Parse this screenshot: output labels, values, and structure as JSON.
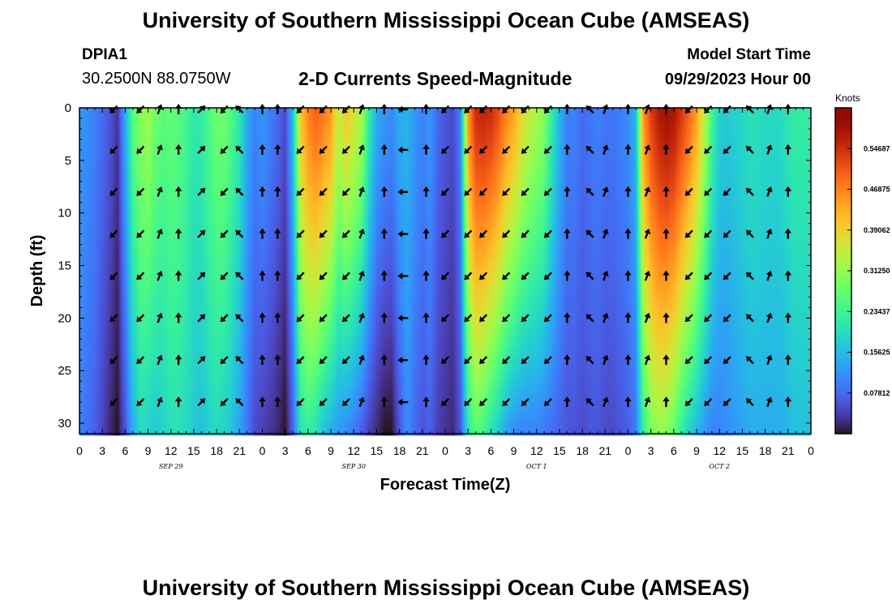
{
  "header": {
    "title": "University of Southern Mississippi Ocean Cube (AMSEAS)",
    "station_id": "DPIA1",
    "coordinates": "30.2500N  88.0750W",
    "chart_title": "2-D Currents Speed-Magnitude",
    "model_start_label": "Model Start Time",
    "model_start_value": "09/29/2023 Hour 00"
  },
  "footer": {
    "title": "University of Southern Mississippi Ocean Cube (AMSEAS)"
  },
  "colors": {
    "low": "#30123b",
    "mid": "#a4fc3c",
    "high": "#7a0403"
  },
  "chart_data": {
    "type": "heatmap",
    "title": "2-D Currents Speed-Magnitude",
    "xlabel": "Forecast Time(Z)",
    "ylabel": "Depth (ft)",
    "xlim": [
      0,
      96
    ],
    "ylim": [
      0,
      31
    ],
    "x_ticks": [
      0,
      3,
      6,
      9,
      12,
      15,
      18,
      21,
      24,
      27,
      30,
      33,
      36,
      39,
      42,
      45,
      48,
      51,
      54,
      57,
      60,
      63,
      66,
      69,
      72,
      75,
      78,
      81,
      84,
      87,
      90,
      93,
      96
    ],
    "x_tick_labels": [
      "0",
      "3",
      "6",
      "9",
      "12",
      "15",
      "18",
      "21",
      "0",
      "3",
      "6",
      "9",
      "12",
      "15",
      "18",
      "21",
      "0",
      "3",
      "6",
      "9",
      "12",
      "15",
      "18",
      "21",
      "0",
      "3",
      "6",
      "9",
      "12",
      "15",
      "18",
      "21",
      "0"
    ],
    "day_labels": [
      {
        "label": "SEP 29",
        "hour": 12
      },
      {
        "label": "SEP 30",
        "hour": 36
      },
      {
        "label": "OCT 1",
        "hour": 60
      },
      {
        "label": "OCT 2",
        "hour": 84
      }
    ],
    "y_ticks": [
      0,
      5,
      10,
      15,
      20,
      25,
      30
    ],
    "colorbar": {
      "label": "Knots",
      "min": 0,
      "max": 0.625,
      "ticks": [
        "0.54687",
        "0.46875",
        "0.39062",
        "0.31250",
        "0.23437",
        "0.15625",
        "0.07812"
      ],
      "tick_values": [
        0.54687,
        0.46875,
        0.39062,
        0.3125,
        0.23437,
        0.15625,
        0.07812
      ]
    },
    "profile_hours": [
      0,
      2,
      4,
      5,
      6,
      7,
      8,
      9,
      10,
      11,
      12,
      13,
      14,
      15,
      16,
      17,
      18,
      19,
      20,
      21,
      22,
      23,
      24,
      25,
      26,
      27,
      28,
      29,
      30,
      31,
      32,
      33,
      34,
      35,
      36,
      37,
      38,
      39,
      40,
      41,
      42,
      43,
      44,
      45,
      46,
      47,
      48,
      49,
      50,
      51,
      52,
      53,
      54,
      55,
      56,
      57,
      58,
      59,
      60,
      61,
      62,
      63,
      64,
      65,
      66,
      67,
      68,
      69,
      70,
      71,
      72,
      73,
      74,
      75,
      76,
      77,
      78,
      79,
      80,
      81,
      82,
      83,
      84,
      85,
      86,
      87,
      88,
      89,
      90,
      91,
      92,
      93,
      94,
      95,
      96
    ],
    "speed_surface_knots": [
      0.12,
      0.1,
      0.06,
      0.03,
      0.14,
      0.26,
      0.3,
      0.32,
      0.28,
      0.26,
      0.27,
      0.26,
      0.24,
      0.21,
      0.22,
      0.25,
      0.28,
      0.28,
      0.25,
      0.21,
      0.14,
      0.1,
      0.12,
      0.1,
      0.08,
      0.05,
      0.16,
      0.4,
      0.47,
      0.5,
      0.48,
      0.45,
      0.35,
      0.4,
      0.37,
      0.33,
      0.22,
      0.14,
      0.12,
      0.11,
      0.14,
      0.15,
      0.12,
      0.1,
      0.12,
      0.08,
      0.06,
      0.05,
      0.1,
      0.45,
      0.55,
      0.56,
      0.55,
      0.52,
      0.47,
      0.44,
      0.39,
      0.35,
      0.33,
      0.3,
      0.22,
      0.15,
      0.1,
      0.1,
      0.08,
      0.09,
      0.1,
      0.09,
      0.09,
      0.1,
      0.11,
      0.15,
      0.45,
      0.53,
      0.57,
      0.59,
      0.58,
      0.54,
      0.5,
      0.44,
      0.35,
      0.24,
      0.18,
      0.17,
      0.18,
      0.19,
      0.2,
      0.2,
      0.19,
      0.19,
      0.19,
      0.21,
      0.22,
      0.22,
      0.22
    ],
    "speed_bottom_knots": [
      0.1,
      0.07,
      0.02,
      0.0,
      0.06,
      0.14,
      0.19,
      0.18,
      0.17,
      0.18,
      0.2,
      0.2,
      0.19,
      0.17,
      0.16,
      0.18,
      0.19,
      0.18,
      0.16,
      0.13,
      0.09,
      0.05,
      0.04,
      0.03,
      0.02,
      0.0,
      0.07,
      0.2,
      0.22,
      0.2,
      0.16,
      0.14,
      0.12,
      0.11,
      0.09,
      0.07,
      0.04,
      0.02,
      0.0,
      0.0,
      0.06,
      0.11,
      0.08,
      0.06,
      0.07,
      0.04,
      0.03,
      0.02,
      0.06,
      0.2,
      0.26,
      0.24,
      0.2,
      0.17,
      0.13,
      0.11,
      0.1,
      0.1,
      0.1,
      0.09,
      0.08,
      0.07,
      0.06,
      0.06,
      0.05,
      0.06,
      0.06,
      0.05,
      0.05,
      0.06,
      0.07,
      0.09,
      0.22,
      0.29,
      0.31,
      0.3,
      0.27,
      0.22,
      0.18,
      0.15,
      0.12,
      0.1,
      0.1,
      0.11,
      0.12,
      0.13,
      0.14,
      0.14,
      0.14,
      0.14,
      0.14,
      0.15,
      0.16,
      0.16,
      0.16
    ],
    "vector_hours": [
      4.5,
      8,
      10.5,
      13,
      16,
      19,
      21,
      24,
      26,
      29,
      32,
      35,
      37,
      40,
      42.5,
      45.5,
      48,
      51,
      53,
      56,
      58.5,
      61.5,
      64,
      67,
      69,
      72,
      74.5,
      77,
      80,
      82.5,
      85,
      88,
      90.5,
      93
    ],
    "vector_depths_ft": [
      0,
      4,
      8,
      12,
      16,
      20,
      24,
      28
    ],
    "vector_directions_deg": [
      225,
      225,
      20,
      0,
      45,
      225,
      315,
      0,
      0,
      225,
      225,
      225,
      20,
      0,
      270,
      0,
      225,
      225,
      225,
      225,
      225,
      225,
      0,
      315,
      20,
      0,
      20,
      0,
      225,
      225,
      225,
      315,
      20,
      0
    ]
  }
}
